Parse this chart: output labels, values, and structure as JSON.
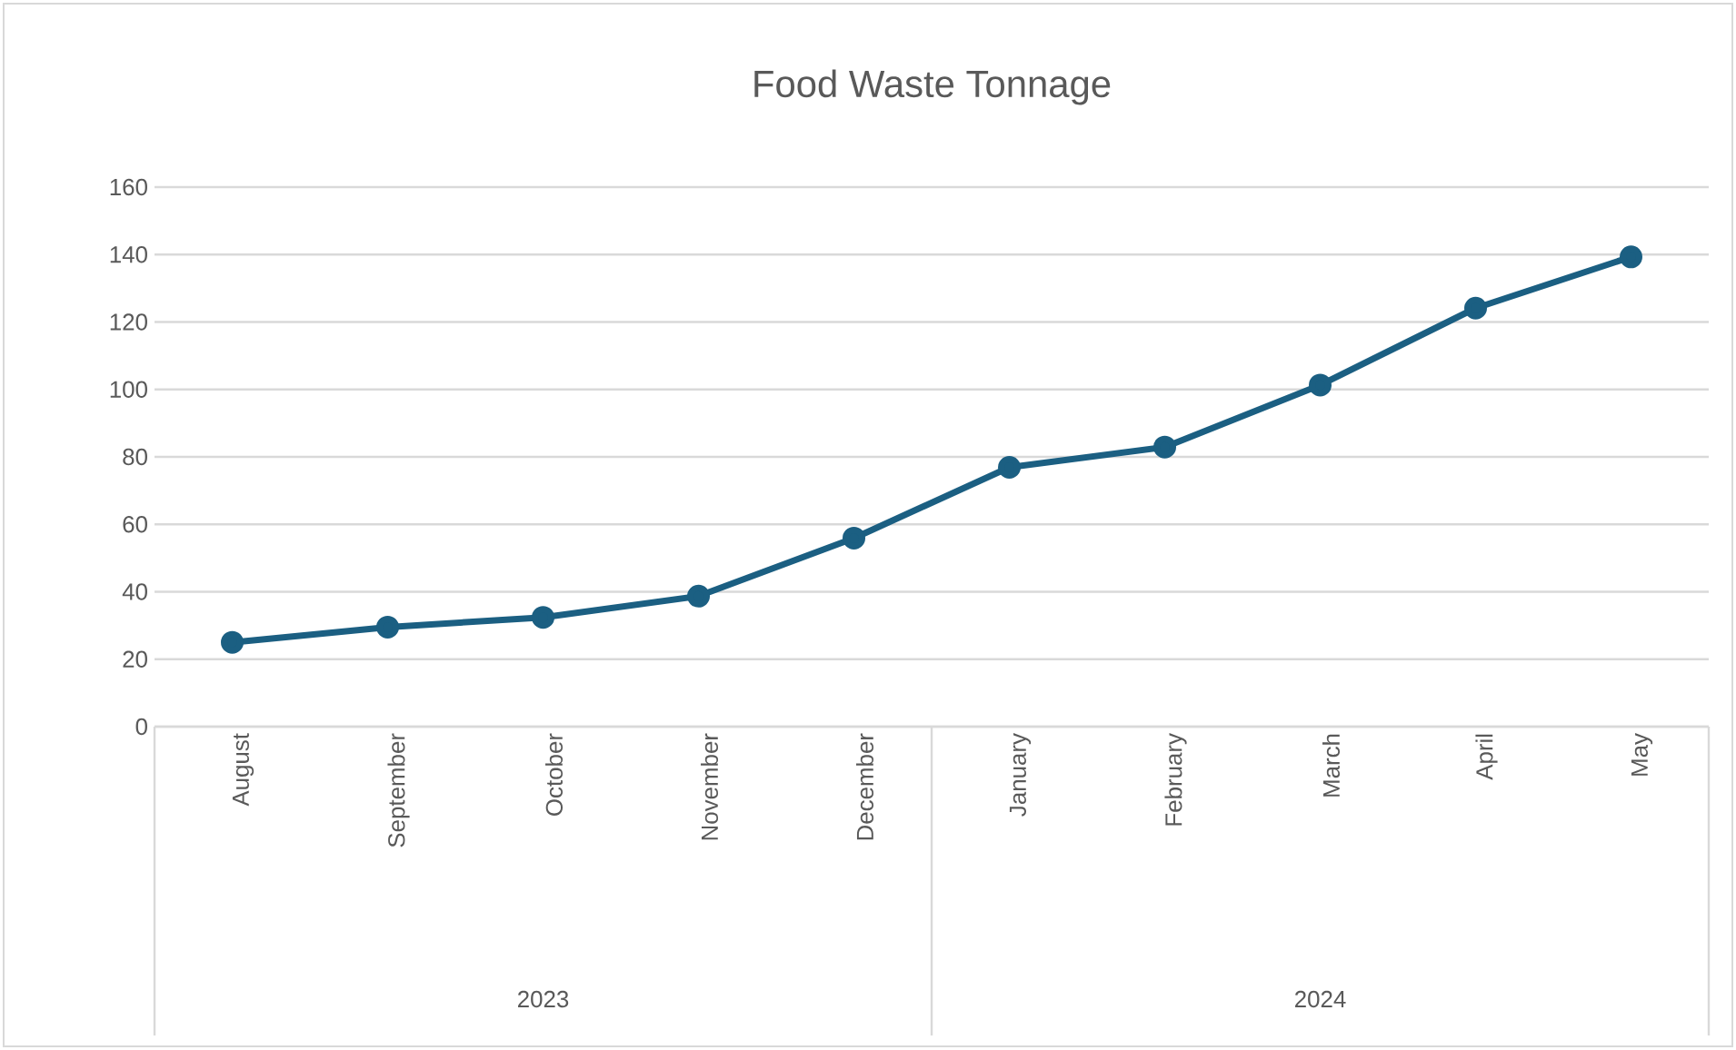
{
  "chart_data": {
    "type": "line",
    "title": "Food Waste Tonnage",
    "categories": [
      "August",
      "September",
      "October",
      "November",
      "December",
      "January",
      "February",
      "March",
      "April",
      "May"
    ],
    "values": [
      25,
      29.5,
      32.4,
      38.7,
      55.9,
      76.9,
      82.9,
      101.3,
      124.1,
      139.3
    ],
    "color": "#1b5f82",
    "ylim": [
      0,
      160
    ],
    "yticks": [
      0,
      20,
      40,
      60,
      80,
      100,
      120,
      140,
      160
    ],
    "grid": "y",
    "marker": "circle",
    "annotations": [
      "2023",
      "2024"
    ]
  }
}
